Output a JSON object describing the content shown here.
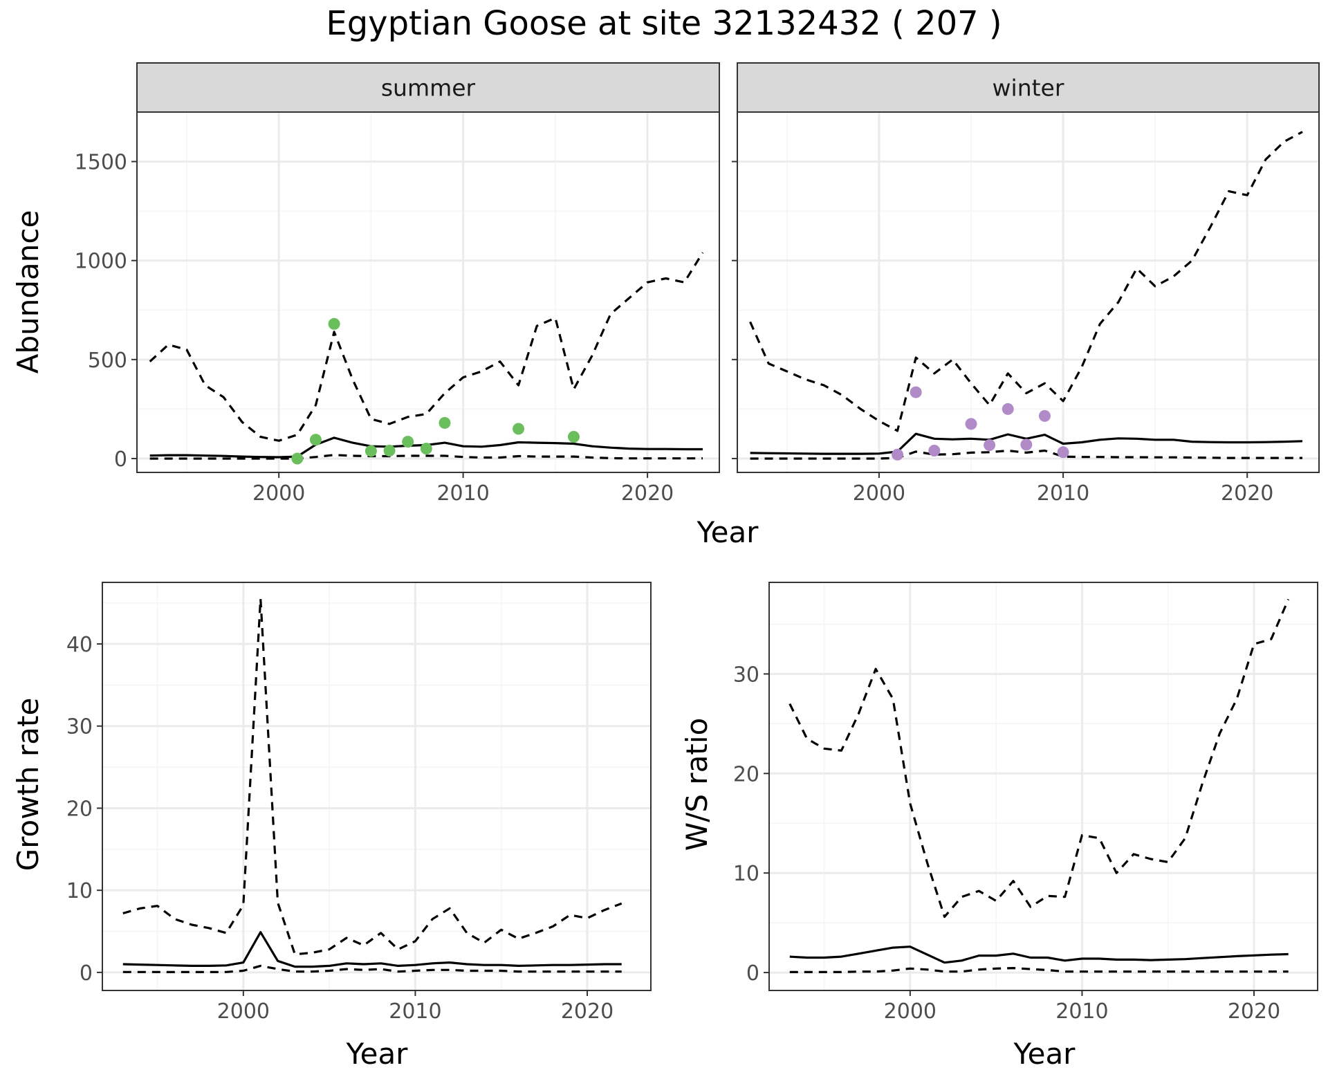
{
  "title": "Egyptian Goose at site 32132432 ( 207 )",
  "colors": {
    "summer_points": "#6ABE5C",
    "winter_points": "#B08BC8",
    "line": "#000000",
    "grid_major": "#EBEBEB",
    "grid_minor": "#F5F5F5",
    "strip_fill": "#D9D9D9",
    "panel_border": "#333333"
  },
  "chart_data": [
    {
      "type": "line",
      "panel": "summer",
      "strip_label": "summer",
      "xlabel": "Year",
      "ylabel": "Abundance",
      "xlim": [
        1992.3,
        2023.9
      ],
      "ylim": [
        -70,
        1750
      ],
      "x_ticks": [
        2000,
        2010,
        2020
      ],
      "y_ticks": [
        0,
        500,
        1000,
        1500
      ],
      "grid": true,
      "series": [
        {
          "role": "upper",
          "style": "dashed",
          "x": [
            1993,
            1994,
            1995,
            1996,
            1997,
            1998,
            1999,
            2000,
            2001,
            2002,
            2003,
            2004,
            2005,
            2006,
            2007,
            2008,
            2009,
            2010,
            2011,
            2012,
            2013,
            2014,
            2015,
            2016,
            2017,
            2018,
            2019,
            2020,
            2021,
            2022,
            2023
          ],
          "values": [
            490,
            575,
            550,
            370,
            310,
            185,
            110,
            90,
            120,
            270,
            640,
            400,
            200,
            175,
            210,
            225,
            330,
            410,
            440,
            490,
            370,
            670,
            710,
            350,
            520,
            730,
            810,
            890,
            910,
            890,
            1040
          ]
        },
        {
          "role": "mean",
          "style": "solid",
          "x": [
            1993,
            1994,
            1995,
            1996,
            1997,
            1998,
            1999,
            2000,
            2001,
            2002,
            2003,
            2004,
            2005,
            2006,
            2007,
            2008,
            2009,
            2010,
            2011,
            2012,
            2013,
            2014,
            2015,
            2016,
            2017,
            2018,
            2019,
            2020,
            2021,
            2022,
            2023
          ],
          "values": [
            15,
            17,
            17,
            15,
            13,
            10,
            8,
            7,
            10,
            70,
            105,
            80,
            62,
            60,
            65,
            68,
            80,
            62,
            60,
            68,
            82,
            80,
            78,
            75,
            62,
            55,
            50,
            48,
            48,
            47,
            47
          ]
        },
        {
          "role": "lower",
          "style": "dashed",
          "x": [
            1993,
            1994,
            1995,
            1996,
            1997,
            1998,
            1999,
            2000,
            2001,
            2002,
            2003,
            2004,
            2005,
            2006,
            2007,
            2008,
            2009,
            2010,
            2011,
            2012,
            2013,
            2014,
            2015,
            2016,
            2017,
            2018,
            2019,
            2020,
            2021,
            2022,
            2023
          ],
          "values": [
            0,
            0,
            0,
            0,
            0,
            0,
            0,
            0,
            0,
            8,
            18,
            14,
            12,
            12,
            14,
            14,
            14,
            8,
            5,
            5,
            12,
            10,
            10,
            10,
            5,
            2,
            1,
            1,
            1,
            1,
            1
          ]
        }
      ],
      "observed": {
        "x": [
          2001,
          2002,
          2003,
          2005,
          2006,
          2007,
          2008,
          2009,
          2013,
          2016
        ],
        "y": [
          0,
          95,
          680,
          38,
          40,
          85,
          50,
          180,
          150,
          110
        ]
      }
    },
    {
      "type": "line",
      "panel": "winter",
      "strip_label": "winter",
      "xlabel": "Year",
      "ylabel": "Abundance",
      "xlim": [
        1992.3,
        2023.9
      ],
      "ylim": [
        -70,
        1750
      ],
      "x_ticks": [
        2000,
        2010,
        2020
      ],
      "y_ticks": [
        0,
        500,
        1000,
        1500
      ],
      "grid": true,
      "series": [
        {
          "role": "upper",
          "style": "dashed",
          "x": [
            1993,
            1994,
            1995,
            1996,
            1997,
            1998,
            1999,
            2000,
            2001,
            2002,
            2003,
            2004,
            2005,
            2006,
            2007,
            2008,
            2009,
            2010,
            2011,
            2012,
            2013,
            2014,
            2015,
            2016,
            2017,
            2018,
            2019,
            2020,
            2021,
            2022,
            2023
          ],
          "values": [
            690,
            480,
            440,
            400,
            370,
            320,
            250,
            190,
            140,
            510,
            430,
            500,
            380,
            270,
            430,
            330,
            380,
            290,
            460,
            680,
            790,
            960,
            870,
            920,
            1000,
            1170,
            1350,
            1330,
            1510,
            1600,
            1650
          ]
        },
        {
          "role": "mean",
          "style": "solid",
          "x": [
            1993,
            1994,
            1995,
            1996,
            1997,
            1998,
            1999,
            2000,
            2001,
            2002,
            2003,
            2004,
            2005,
            2006,
            2007,
            2008,
            2009,
            2010,
            2011,
            2012,
            2013,
            2014,
            2015,
            2016,
            2017,
            2018,
            2019,
            2020,
            2021,
            2022,
            2023
          ],
          "values": [
            28,
            27,
            26,
            25,
            24,
            24,
            24,
            25,
            35,
            125,
            100,
            97,
            100,
            95,
            122,
            100,
            120,
            75,
            82,
            95,
            102,
            100,
            95,
            95,
            85,
            83,
            82,
            82,
            83,
            85,
            88
          ]
        },
        {
          "role": "lower",
          "style": "dashed",
          "x": [
            1993,
            1994,
            1995,
            1996,
            1997,
            1998,
            1999,
            2000,
            2001,
            2002,
            2003,
            2004,
            2005,
            2006,
            2007,
            2008,
            2009,
            2010,
            2011,
            2012,
            2013,
            2014,
            2015,
            2016,
            2017,
            2018,
            2019,
            2020,
            2021,
            2022,
            2023
          ],
          "values": [
            0,
            0,
            0,
            0,
            0,
            0,
            0,
            0,
            3,
            35,
            20,
            22,
            30,
            32,
            40,
            30,
            40,
            10,
            8,
            8,
            7,
            7,
            6,
            6,
            5,
            4,
            3,
            3,
            3,
            3,
            3
          ]
        }
      ],
      "observed": {
        "x": [
          2001,
          2002,
          2003,
          2005,
          2006,
          2007,
          2008,
          2009,
          2010
        ],
        "y": [
          20,
          335,
          40,
          175,
          68,
          250,
          70,
          215,
          32
        ]
      }
    },
    {
      "type": "line",
      "panel": "growth",
      "xlabel": "Year",
      "ylabel": "Growth rate",
      "xlim": [
        1991.8,
        2023.7
      ],
      "ylim": [
        -2.2,
        47.5
      ],
      "x_ticks": [
        2000,
        2010,
        2020
      ],
      "y_ticks": [
        0,
        10,
        20,
        30,
        40
      ],
      "grid": true,
      "series": [
        {
          "role": "upper",
          "style": "dashed",
          "x": [
            1993,
            1994,
            1995,
            1996,
            1997,
            1998,
            1999,
            2000,
            2001,
            2002,
            2003,
            2004,
            2005,
            2006,
            2007,
            2008,
            2009,
            2010,
            2011,
            2012,
            2013,
            2014,
            2015,
            2016,
            2017,
            2018,
            2019,
            2020,
            2021,
            2022
          ],
          "values": [
            7.2,
            7.8,
            8.1,
            6.5,
            5.8,
            5.4,
            4.8,
            8.2,
            45.5,
            8.5,
            2.2,
            2.4,
            2.8,
            4.2,
            3.3,
            4.8,
            2.8,
            3.8,
            6.5,
            7.8,
            4.8,
            3.6,
            5.2,
            4.1,
            4.8,
            5.6,
            7.0,
            6.6,
            7.6,
            8.4
          ]
        },
        {
          "role": "mean",
          "style": "solid",
          "x": [
            1993,
            1994,
            1995,
            1996,
            1997,
            1998,
            1999,
            2000,
            2001,
            2002,
            2003,
            2004,
            2005,
            2006,
            2007,
            2008,
            2009,
            2010,
            2011,
            2012,
            2013,
            2014,
            2015,
            2016,
            2017,
            2018,
            2019,
            2020,
            2021,
            2022
          ],
          "values": [
            1.0,
            0.95,
            0.9,
            0.85,
            0.8,
            0.8,
            0.85,
            1.2,
            4.9,
            1.4,
            0.7,
            0.7,
            0.8,
            1.1,
            1.0,
            1.1,
            0.8,
            0.9,
            1.1,
            1.2,
            1.0,
            0.9,
            0.9,
            0.8,
            0.85,
            0.9,
            0.9,
            0.95,
            1.0,
            1.0
          ]
        },
        {
          "role": "lower",
          "style": "dashed",
          "x": [
            1993,
            1994,
            1995,
            1996,
            1997,
            1998,
            1999,
            2000,
            2001,
            2002,
            2003,
            2004,
            2005,
            2006,
            2007,
            2008,
            2009,
            2010,
            2011,
            2012,
            2013,
            2014,
            2015,
            2016,
            2017,
            2018,
            2019,
            2020,
            2021,
            2022
          ],
          "values": [
            0.05,
            0.05,
            0.05,
            0.04,
            0.04,
            0.04,
            0.05,
            0.2,
            0.8,
            0.4,
            0.1,
            0.1,
            0.2,
            0.4,
            0.3,
            0.4,
            0.1,
            0.2,
            0.3,
            0.3,
            0.2,
            0.2,
            0.2,
            0.1,
            0.1,
            0.1,
            0.1,
            0.1,
            0.1,
            0.1
          ]
        }
      ]
    },
    {
      "type": "line",
      "panel": "ratio",
      "xlabel": "Year",
      "ylabel": "W/S ratio",
      "xlim": [
        1991.8,
        2023.7
      ],
      "ylim": [
        -1.8,
        39.2
      ],
      "x_ticks": [
        2000,
        2010,
        2020
      ],
      "y_ticks": [
        0,
        10,
        20,
        30
      ],
      "grid": true,
      "series": [
        {
          "role": "upper",
          "style": "dashed",
          "x": [
            1993,
            1994,
            1995,
            1996,
            1997,
            1998,
            1999,
            2000,
            2001,
            2002,
            2003,
            2004,
            2005,
            2006,
            2007,
            2008,
            2009,
            2010,
            2011,
            2012,
            2013,
            2014,
            2015,
            2016,
            2017,
            2018,
            2019,
            2020,
            2021,
            2022
          ],
          "values": [
            27.0,
            23.5,
            22.5,
            22.3,
            26.0,
            30.5,
            27.5,
            17.0,
            11.0,
            5.6,
            7.6,
            8.2,
            7.2,
            9.2,
            6.6,
            7.7,
            7.6,
            13.8,
            13.5,
            10.0,
            11.9,
            11.4,
            11.1,
            13.5,
            19.0,
            24.0,
            27.5,
            33.0,
            33.5,
            37.5
          ]
        },
        {
          "role": "mean",
          "style": "solid",
          "x": [
            1993,
            1994,
            1995,
            1996,
            1997,
            1998,
            1999,
            2000,
            2001,
            2002,
            2003,
            2004,
            2005,
            2006,
            2007,
            2008,
            2009,
            2010,
            2011,
            2012,
            2013,
            2014,
            2015,
            2016,
            2017,
            2018,
            2019,
            2020,
            2021,
            2022
          ],
          "values": [
            1.6,
            1.5,
            1.5,
            1.6,
            1.9,
            2.2,
            2.5,
            2.6,
            1.8,
            1.0,
            1.2,
            1.7,
            1.7,
            1.9,
            1.5,
            1.5,
            1.2,
            1.4,
            1.4,
            1.3,
            1.3,
            1.25,
            1.3,
            1.35,
            1.45,
            1.55,
            1.65,
            1.72,
            1.8,
            1.85
          ]
        },
        {
          "role": "lower",
          "style": "dashed",
          "x": [
            1993,
            1994,
            1995,
            1996,
            1997,
            1998,
            1999,
            2000,
            2001,
            2002,
            2003,
            2004,
            2005,
            2006,
            2007,
            2008,
            2009,
            2010,
            2011,
            2012,
            2013,
            2014,
            2015,
            2016,
            2017,
            2018,
            2019,
            2020,
            2021,
            2022
          ],
          "values": [
            0.05,
            0.05,
            0.05,
            0.05,
            0.1,
            0.1,
            0.2,
            0.4,
            0.3,
            0.1,
            0.1,
            0.3,
            0.4,
            0.45,
            0.35,
            0.25,
            0.1,
            0.1,
            0.1,
            0.1,
            0.1,
            0.1,
            0.1,
            0.1,
            0.1,
            0.1,
            0.1,
            0.1,
            0.1,
            0.1
          ]
        }
      ]
    }
  ]
}
